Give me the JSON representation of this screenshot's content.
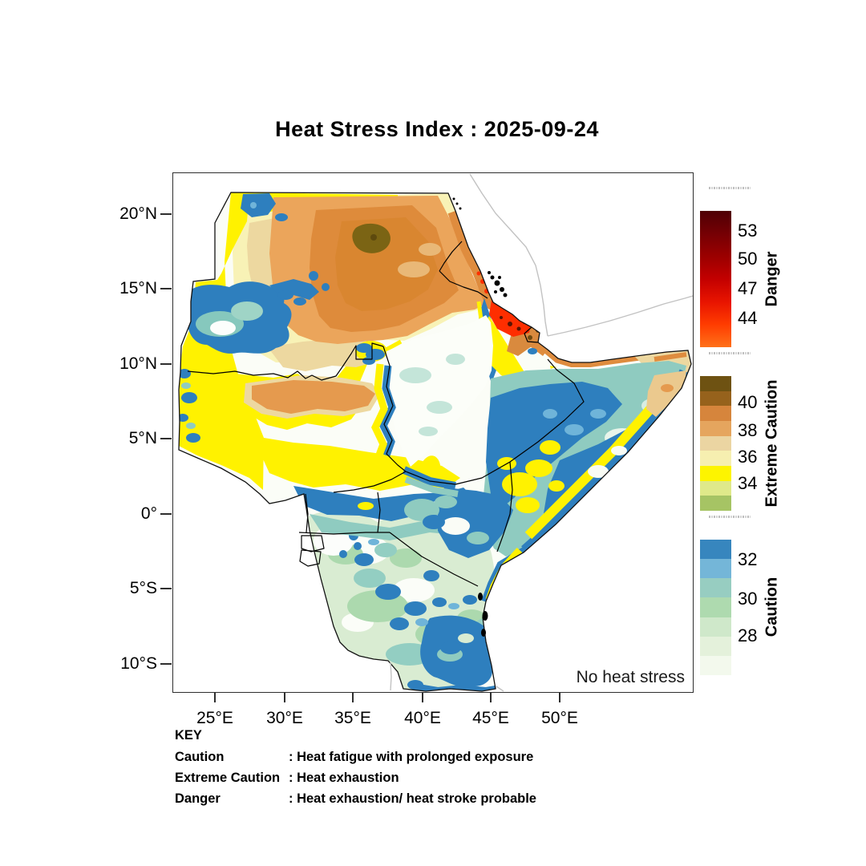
{
  "title": "Heat Stress Index : 2025-09-24",
  "axes": {
    "x_ticks": [
      "25°E",
      "30°E",
      "35°E",
      "40°E",
      "45°E",
      "50°E"
    ],
    "y_ticks": [
      "20°N",
      "15°N",
      "10°N",
      "5°N",
      "0°",
      "5°S",
      "10°S"
    ]
  },
  "map_annotation": "No heat stress",
  "legend": {
    "sections": [
      {
        "id": "danger",
        "label": "Danger",
        "ticks": [
          "53",
          "50",
          "47",
          "44"
        ],
        "gradient_top_to_bottom": [
          "#4f0005",
          "#750004",
          "#9b0000",
          "#c30000",
          "#e81400",
          "#ff3c00",
          "#ff7119"
        ]
      },
      {
        "id": "extreme_caution",
        "label": "Extreme Caution",
        "ticks": [
          "40",
          "38",
          "36",
          "34"
        ],
        "bands_top_to_bottom": [
          "#6e5212",
          "#96621c",
          "#d6853c",
          "#e5a55e",
          "#ebd5a2",
          "#f6efb0",
          "#fdf400",
          "#dfe98a",
          "#a6c464"
        ]
      },
      {
        "id": "caution",
        "label": "Caution",
        "ticks": [
          "32",
          "30",
          "28"
        ],
        "bands_top_to_bottom": [
          "#3786be",
          "#74b6d8",
          "#97cdc1",
          "#aedaaf",
          "#cfe8ca",
          "#e4f1db",
          "#f3f9ed"
        ]
      }
    ]
  },
  "key": {
    "heading": "KEY",
    "rows": [
      {
        "term": "Caution",
        "desc": ": Heat fatigue with prolonged exposure"
      },
      {
        "term": "Extreme Caution",
        "desc": ": Heat exhaustion"
      },
      {
        "term": "Danger",
        "desc": ": Heat exhaustion/ heat stroke probable"
      }
    ]
  },
  "map_palette": {
    "no_heat_stress": "#fbfdf7",
    "caution_blue": "#2e7fbe",
    "caution_light_blue": "#6fb4d9",
    "caution_teal": "#8fcbc0",
    "caution_green": "#acd9ae",
    "caution_pale_green": "#d9ecd2",
    "extreme_yellow": "#fff200",
    "extreme_pale_yellow": "#f8f2b6",
    "extreme_tan": "#edd8a0",
    "extreme_light_orange": "#eba55b",
    "extreme_orange": "#de8b3b",
    "extreme_olive_brown": "#7b6414",
    "danger_red": "#fe2e00",
    "danger_dark": "#581505",
    "border_black": "#000000",
    "coast_gray": "#c2c2c2"
  }
}
